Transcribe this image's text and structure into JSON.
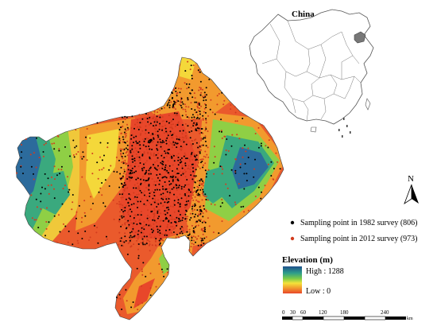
{
  "inset": {
    "title": "China"
  },
  "north_arrow": {
    "label": "N"
  },
  "legend": {
    "items": [
      {
        "label": "Sampling point in 1982 survey (806)",
        "color": "#000000"
      },
      {
        "label": "Sampling point in 2012 survey (973)",
        "color": "#d23c1e"
      }
    ]
  },
  "elevation": {
    "title": "Elevation (m)",
    "high_label": "High : 1288",
    "low_label": "Low : 0",
    "ramp_colors": [
      "#1e4f8c",
      "#2e9e8a",
      "#7ccb47",
      "#f4e23a",
      "#f29a2e",
      "#e8472a"
    ]
  },
  "scale_bar": {
    "ticks": [
      "0",
      "30",
      "60",
      "120",
      "180",
      "240"
    ],
    "unit": "km"
  },
  "points": {
    "survey_1982_count": 806,
    "survey_2012_count": 973
  }
}
